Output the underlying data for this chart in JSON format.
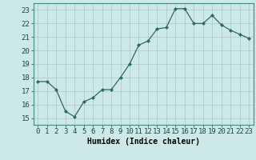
{
  "x": [
    0,
    1,
    2,
    3,
    4,
    5,
    6,
    7,
    8,
    9,
    10,
    11,
    12,
    13,
    14,
    15,
    16,
    17,
    18,
    19,
    20,
    21,
    22,
    23
  ],
  "y": [
    17.7,
    17.7,
    17.1,
    15.5,
    15.1,
    16.2,
    16.5,
    17.1,
    17.1,
    18.0,
    19.0,
    20.4,
    20.7,
    21.6,
    21.7,
    23.1,
    23.1,
    22.0,
    22.0,
    22.6,
    21.9,
    21.5,
    21.2,
    20.9
  ],
  "line_color": "#2e6b5e",
  "marker": "D",
  "marker_size": 2.0,
  "bg_color": "#cce8e8",
  "grid_color": "#b0cccc",
  "xlabel": "Humidex (Indice chaleur)",
  "xlabel_fontsize": 7,
  "tick_fontsize": 6.5,
  "ylim": [
    14.5,
    23.5
  ],
  "xlim": [
    -0.5,
    23.5
  ],
  "yticks": [
    15,
    16,
    17,
    18,
    19,
    20,
    21,
    22,
    23
  ],
  "xticks": [
    0,
    1,
    2,
    3,
    4,
    5,
    6,
    7,
    8,
    9,
    10,
    11,
    12,
    13,
    14,
    15,
    16,
    17,
    18,
    19,
    20,
    21,
    22,
    23
  ]
}
